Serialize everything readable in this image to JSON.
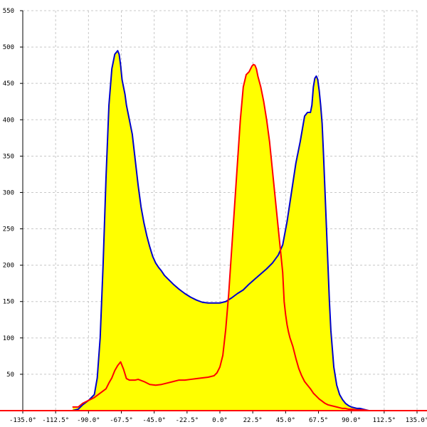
{
  "chart_data": {
    "type": "area",
    "title": "",
    "xlabel": "",
    "ylabel": "",
    "xlim": [
      -135,
      135
    ],
    "ylim": [
      0,
      550
    ],
    "grid": true,
    "x_ticks": [
      -135,
      -112.5,
      -90,
      -67.5,
      -45,
      -22.5,
      0,
      22.5,
      45,
      67.5,
      90,
      112.5,
      135
    ],
    "x_tick_labels": [
      "-135.0°",
      "-112.5°",
      "-90.0°",
      "-67.5°",
      "-45.0°",
      "-22.5°",
      "0.0°",
      "22.5°",
      "45.0°",
      "67.5°",
      "90.0°",
      "112.5°",
      "135.0°"
    ],
    "y_ticks": [
      50,
      100,
      150,
      200,
      250,
      300,
      350,
      400,
      450,
      500,
      550
    ],
    "y_tick_labels": [
      "50",
      "100",
      "150",
      "200",
      "250",
      "300",
      "350",
      "400",
      "450",
      "500",
      "550"
    ],
    "fill_color": "#ffff00",
    "series": [
      {
        "color": "#0000cc",
        "x": [
          -101,
          -97,
          -94,
          -90,
          -86,
          -84,
          -82,
          -80,
          -78,
          -76,
          -74,
          -72,
          -70,
          -69,
          -68,
          -67,
          -66,
          -65,
          -64,
          -62,
          -60,
          -58,
          -56,
          -54,
          -52,
          -50,
          -48,
          -46,
          -44,
          -42,
          -40,
          -38,
          -36,
          -32,
          -28,
          -24,
          -20,
          -16,
          -12,
          -8,
          -4,
          0,
          4,
          8,
          12,
          16,
          20,
          24,
          28,
          32,
          36,
          40,
          43,
          46,
          49,
          52,
          55,
          58,
          60,
          62,
          63,
          64,
          65,
          66,
          66.5,
          67,
          68,
          69,
          70,
          71,
          72,
          73,
          74,
          75,
          76,
          77,
          78,
          80,
          82,
          84,
          86,
          88,
          90,
          92,
          94,
          96,
          98,
          100,
          102
        ],
        "values": [
          0,
          2,
          8,
          14,
          22,
          45,
          100,
          200,
          320,
          420,
          470,
          490,
          495,
          490,
          475,
          455,
          445,
          435,
          420,
          400,
          380,
          345,
          310,
          280,
          258,
          240,
          225,
          212,
          203,
          197,
          192,
          186,
          182,
          174,
          167,
          161,
          156,
          152,
          149,
          148,
          148,
          148,
          150,
          155,
          161,
          166,
          174,
          181,
          188,
          195,
          203,
          214,
          228,
          260,
          300,
          340,
          370,
          405,
          410,
          410,
          420,
          445,
          457,
          460,
          458,
          455,
          440,
          420,
          395,
          350,
          300,
          250,
          200,
          150,
          110,
          85,
          60,
          35,
          22,
          15,
          10,
          7,
          5,
          4,
          3,
          3,
          2,
          1,
          0
        ]
      },
      {
        "color": "#ff0000",
        "x": [
          -101,
          -97,
          -94,
          -90,
          -86,
          -82,
          -78,
          -76,
          -74,
          -72,
          -70,
          -68,
          -66,
          -64,
          -62,
          -60,
          -58,
          -56,
          -52,
          -48,
          -44,
          -40,
          -36,
          -32,
          -28,
          -24,
          -20,
          -16,
          -12,
          -8,
          -4,
          -2,
          0,
          2,
          4,
          6,
          8,
          10,
          12,
          14,
          16,
          18,
          20,
          21,
          22,
          23,
          24,
          25,
          26,
          28,
          30,
          32,
          34,
          36,
          38,
          40,
          42,
          43,
          44,
          45,
          46,
          47,
          48,
          50,
          52,
          54,
          56,
          58,
          60,
          62,
          64,
          66,
          68,
          70,
          72,
          74,
          76,
          78,
          80,
          82,
          84,
          86,
          88,
          90,
          94,
          98,
          102
        ],
        "values": [
          5,
          5,
          10,
          14,
          18,
          24,
          30,
          38,
          45,
          55,
          62,
          67,
          57,
          44,
          42,
          42,
          42,
          43,
          40,
          36,
          35,
          36,
          38,
          40,
          42,
          42,
          43,
          44,
          45,
          46,
          48,
          52,
          60,
          76,
          112,
          160,
          220,
          280,
          340,
          400,
          445,
          462,
          466,
          470,
          474,
          476,
          475,
          470,
          460,
          445,
          425,
          400,
          370,
          330,
          290,
          250,
          210,
          190,
          150,
          132,
          118,
          108,
          100,
          88,
          72,
          58,
          48,
          40,
          35,
          30,
          24,
          20,
          16,
          13,
          10,
          8,
          7,
          6,
          5,
          4,
          3,
          3,
          2,
          2,
          1,
          1,
          0
        ]
      }
    ]
  }
}
